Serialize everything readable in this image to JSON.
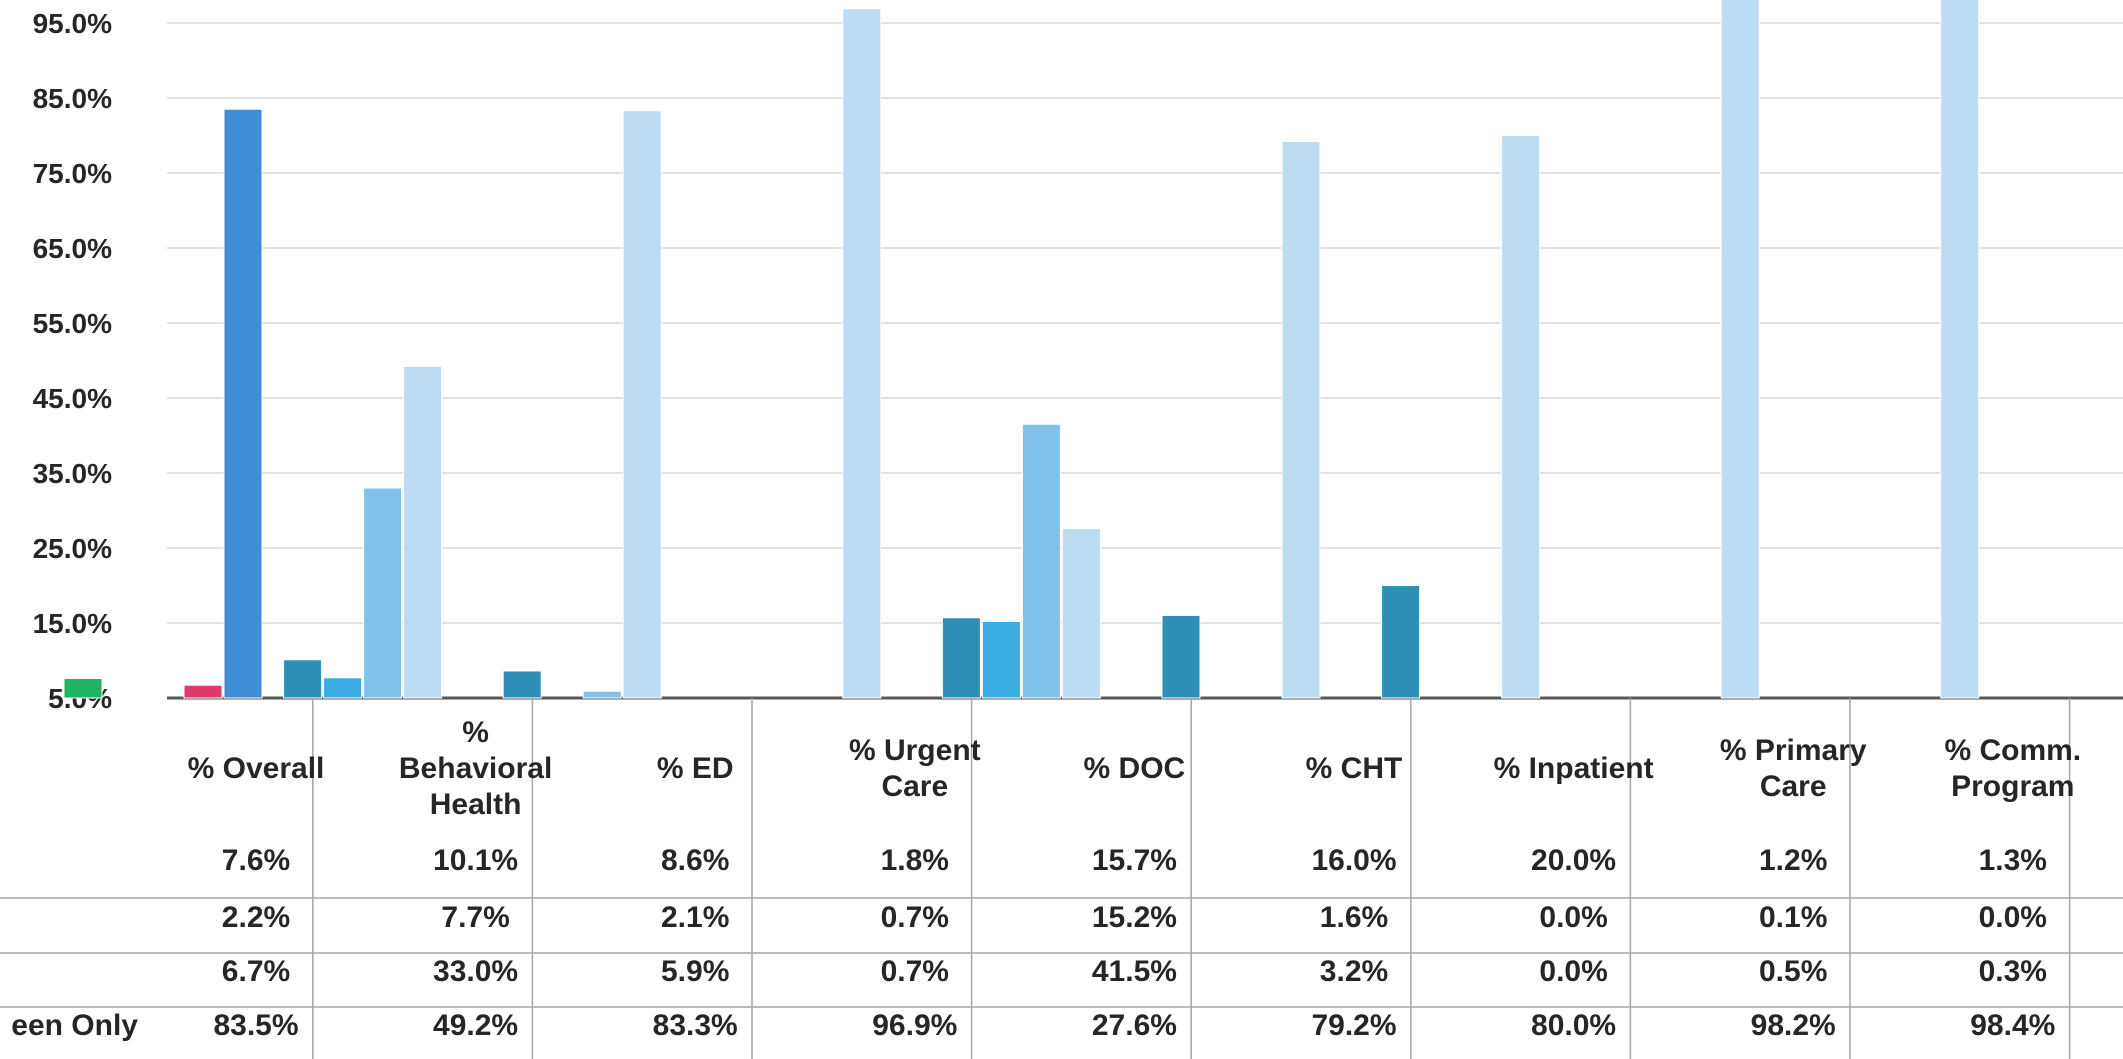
{
  "chart_data": {
    "type": "bar",
    "title": "",
    "xlabel": "",
    "ylabel": "",
    "ylim": [
      5,
      100
    ],
    "yticks": [
      "5.0%",
      "15.0%",
      "25.0%",
      "35.0%",
      "45.0%",
      "55.0%",
      "65.0%",
      "75.0%",
      "85.0%",
      "95.0%"
    ],
    "grid": true,
    "legend": "data table below chart",
    "categories": [
      [
        "% Overall"
      ],
      [
        "%",
        "Behavioral",
        "Health"
      ],
      [
        "% ED"
      ],
      [
        "% Urgent",
        "Care"
      ],
      [
        "% DOC"
      ],
      [
        "% CHT"
      ],
      [
        "% Inpatient"
      ],
      [
        "% Primary",
        "Care"
      ],
      [
        "% Comm.",
        "Program"
      ]
    ],
    "series": [
      {
        "name": "",
        "values": [
          7.6,
          10.1,
          8.6,
          1.8,
          15.7,
          16.0,
          20.0,
          1.2,
          1.3
        ],
        "labels": [
          "7.6%",
          "10.1%",
          "8.6%",
          "1.8%",
          "15.7%",
          "16.0%",
          "20.0%",
          "1.2%",
          "1.3%"
        ]
      },
      {
        "name": "",
        "values": [
          2.2,
          7.7,
          2.1,
          0.7,
          15.2,
          1.6,
          0.0,
          0.1,
          0.0
        ],
        "labels": [
          "2.2%",
          "7.7%",
          "2.1%",
          "0.7%",
          "15.2%",
          "1.6%",
          "0.0%",
          "0.1%",
          "0.0%"
        ]
      },
      {
        "name": "",
        "values": [
          6.7,
          33.0,
          5.9,
          0.7,
          41.5,
          3.2,
          0.0,
          0.5,
          0.3
        ],
        "labels": [
          "6.7%",
          "33.0%",
          "5.9%",
          "0.7%",
          "41.5%",
          "3.2%",
          "0.0%",
          "0.5%",
          "0.3%"
        ]
      },
      {
        "name": "een Only",
        "values": [
          83.5,
          49.2,
          83.3,
          96.9,
          27.6,
          79.2,
          80.0,
          98.2,
          98.4
        ],
        "labels": [
          "83.5%",
          "49.2%",
          "83.3%",
          "96.9%",
          "27.6%",
          "79.2%",
          "80.0%",
          "98.2%",
          "98.4%"
        ]
      }
    ],
    "bar_colors": [
      [
        "#1fb364",
        "#355877",
        "#dc3b6b",
        "#3f8ed3"
      ],
      [
        "#2e8fb8",
        "#3aaee2",
        "#7fc3ea",
        "#bcdcf4"
      ],
      [
        "#2e8fb8",
        "#3aaee2",
        "#7fc3ea",
        "#bcdcf4"
      ],
      [
        "#2e8fb8",
        "#3aaee2",
        "#7fc3ea",
        "#bcdcf4"
      ],
      [
        "#2e8fb8",
        "#3aaee2",
        "#7fc3ea",
        "#bcdcf4"
      ],
      [
        "#2e8fb8",
        "#3aaee2",
        "#7fc3ea",
        "#bcdcf4"
      ],
      [
        "#2e8fb8",
        "#3aaee2",
        "#7fc3ea",
        "#bcdcf4"
      ],
      [
        "#2e8fb8",
        "#3aaee2",
        "#7fc3ea",
        "#bcdcf4"
      ],
      [
        "#2e8fb8",
        "#3aaee2",
        "#7fc3ea",
        "#bcdcf4"
      ]
    ]
  }
}
